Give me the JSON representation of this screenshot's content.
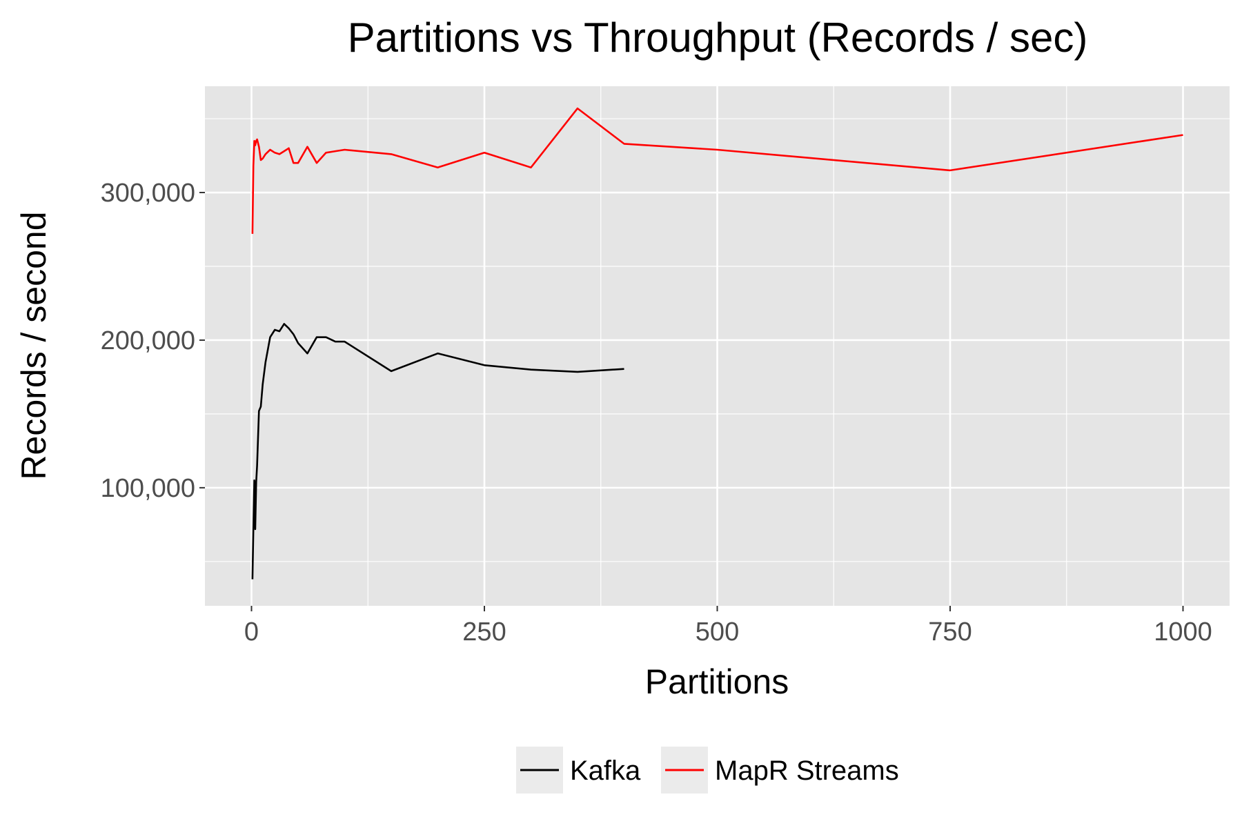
{
  "chart_data": {
    "type": "line",
    "title": "Partitions vs Throughput (Records / sec)",
    "xlabel": "Partitions",
    "ylabel": "Records / second",
    "xlim": [
      -50,
      1050
    ],
    "ylim": [
      20000,
      372000
    ],
    "x_ticks": [
      0,
      250,
      500,
      750,
      1000
    ],
    "x_tick_labels": [
      "0",
      "250",
      "500",
      "750",
      "1000"
    ],
    "y_ticks": [
      100000,
      200000,
      300000
    ],
    "y_tick_labels": [
      "100,000",
      "200,000",
      "300,000"
    ],
    "grid": true,
    "legend_position": "bottom",
    "series": [
      {
        "name": "Kafka",
        "color": "#000000",
        "x": [
          1,
          2,
          3,
          4,
          5,
          6,
          8,
          10,
          12,
          15,
          20,
          25,
          30,
          35,
          40,
          45,
          50,
          60,
          70,
          80,
          90,
          100,
          150,
          200,
          250,
          300,
          350,
          400
        ],
        "y": [
          38000,
          72000,
          105000,
          72000,
          104000,
          115000,
          152000,
          155000,
          170000,
          185000,
          202000,
          207000,
          206000,
          211000,
          208000,
          204000,
          198000,
          191000,
          202000,
          202000,
          199000,
          199000,
          179000,
          191000,
          183000,
          180000,
          178500,
          180500
        ]
      },
      {
        "name": "MapR Streams",
        "color": "#ff0000",
        "x": [
          1,
          2,
          3,
          4,
          5,
          6,
          8,
          10,
          12,
          15,
          20,
          25,
          30,
          35,
          40,
          45,
          50,
          60,
          70,
          80,
          90,
          100,
          150,
          200,
          250,
          300,
          350,
          400,
          500,
          750,
          1000
        ],
        "y": [
          272000,
          318000,
          335000,
          332000,
          335000,
          336000,
          331000,
          322000,
          323000,
          326000,
          329000,
          327000,
          326000,
          328000,
          330000,
          320000,
          320000,
          331000,
          320000,
          327000,
          328000,
          329000,
          326000,
          317000,
          327000,
          317000,
          357000,
          333000,
          329000,
          315000,
          339000
        ]
      }
    ]
  }
}
